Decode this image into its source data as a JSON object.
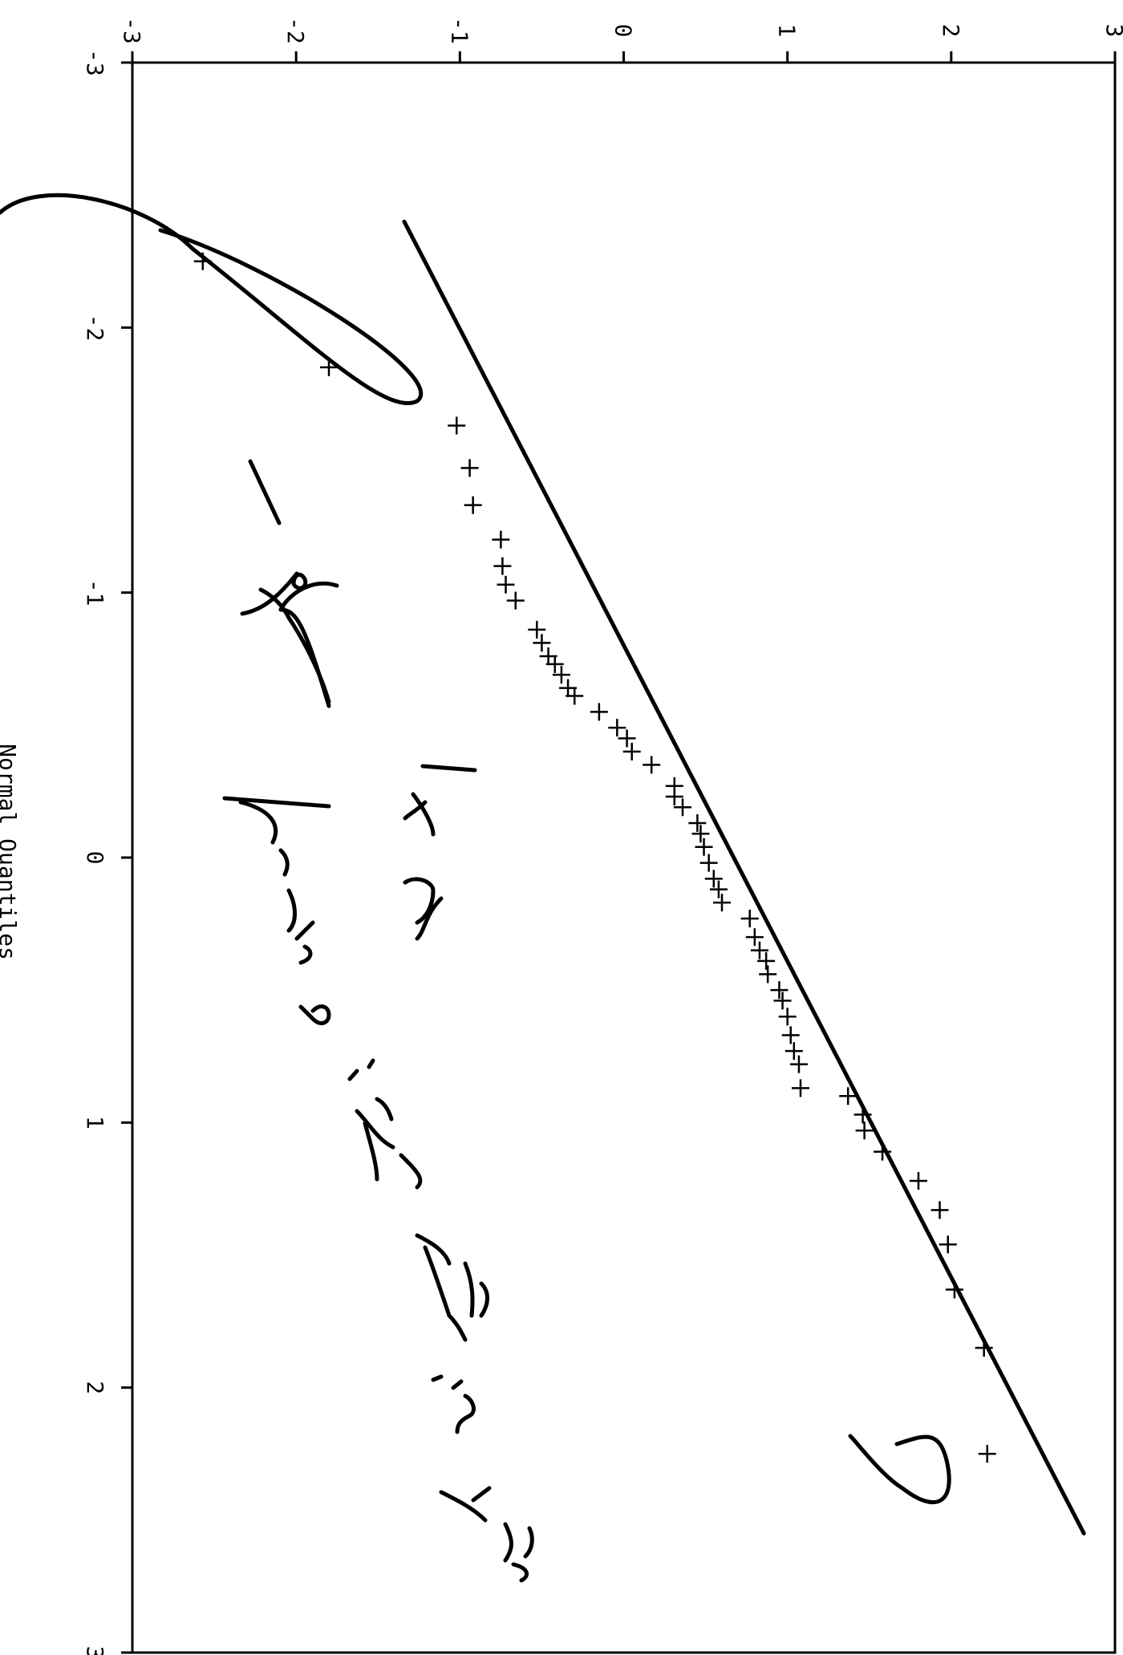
{
  "chart_data": {
    "type": "scatter",
    "xlabel": "Normal Quantiles",
    "ylabel": "",
    "xlim": [
      -3,
      3
    ],
    "ylim": [
      -3,
      3
    ],
    "x_ticks": [
      "-3",
      "-2",
      "-1",
      "0",
      "1",
      "2",
      "3"
    ],
    "y_ticks": [
      "-3",
      "-2",
      "-1",
      "0",
      "1",
      "2",
      "3"
    ],
    "grid": false,
    "marker": "+",
    "series": [
      {
        "points": [
          [
            -2.25,
            -2.57
          ],
          [
            -1.85,
            -1.8
          ],
          [
            -1.63,
            -1.02
          ],
          [
            -1.47,
            -0.94
          ],
          [
            -1.33,
            -0.92
          ],
          [
            -1.2,
            -0.75
          ],
          [
            -1.1,
            -0.74
          ],
          [
            -1.03,
            -0.72
          ],
          [
            -0.97,
            -0.66
          ],
          [
            -0.86,
            -0.53
          ],
          [
            -0.81,
            -0.5
          ],
          [
            -0.76,
            -0.46
          ],
          [
            -0.73,
            -0.42
          ],
          [
            -0.69,
            -0.38
          ],
          [
            -0.64,
            -0.34
          ],
          [
            -0.61,
            -0.3
          ],
          [
            -0.55,
            -0.15
          ],
          [
            -0.49,
            -0.04
          ],
          [
            -0.45,
            0.02
          ],
          [
            -0.4,
            0.05
          ],
          [
            -0.35,
            0.17
          ],
          [
            -0.27,
            0.31
          ],
          [
            -0.23,
            0.31
          ],
          [
            -0.19,
            0.36
          ],
          [
            -0.13,
            0.45
          ],
          [
            -0.09,
            0.47
          ],
          [
            -0.04,
            0.49
          ],
          [
            0.02,
            0.52
          ],
          [
            0.08,
            0.55
          ],
          [
            0.12,
            0.58
          ],
          [
            0.17,
            0.6
          ],
          [
            0.23,
            0.77
          ],
          [
            0.3,
            0.8
          ],
          [
            0.35,
            0.83
          ],
          [
            0.39,
            0.87
          ],
          [
            0.44,
            0.88
          ],
          [
            0.5,
            0.95
          ],
          [
            0.54,
            0.97
          ],
          [
            0.6,
            1.0
          ],
          [
            0.67,
            1.02
          ],
          [
            0.73,
            1.04
          ],
          [
            0.78,
            1.07
          ],
          [
            0.87,
            1.08
          ],
          [
            0.9,
            1.37
          ],
          [
            0.97,
            1.46
          ],
          [
            1.03,
            1.47
          ],
          [
            1.11,
            1.58
          ],
          [
            1.22,
            1.8
          ],
          [
            1.33,
            1.93
          ],
          [
            1.46,
            1.98
          ],
          [
            1.63,
            2.02
          ],
          [
            1.85,
            2.2
          ],
          [
            2.25,
            2.22
          ]
        ]
      }
    ],
    "reference_line": {
      "from": [
        -2.4,
        -1.34
      ],
      "to": [
        2.55,
        2.81
      ]
    },
    "annotations": [
      {
        "kind": "handwritten",
        "text": "- often 1 or 2 points a little off in tails"
      },
      {
        "kind": "ellipse",
        "around": "lower-left outliers"
      },
      {
        "kind": "ellipse",
        "around": "upper-right outlier"
      }
    ]
  }
}
